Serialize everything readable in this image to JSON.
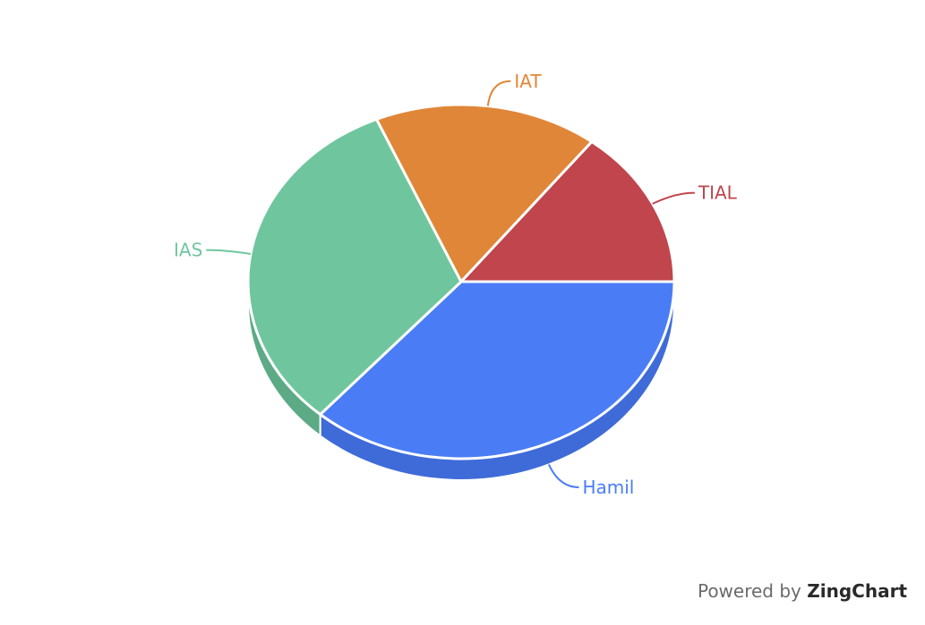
{
  "chart_data": {
    "type": "pie",
    "title": "",
    "slices": [
      {
        "label": "Hamil",
        "value": 36.5,
        "color": "#4a7df5",
        "side_color": "#3f6bd8"
      },
      {
        "label": "IAS",
        "value": 32.0,
        "color": "#6fc69e",
        "side_color": "#5daa86"
      },
      {
        "label": "IAT",
        "value": 17.0,
        "color": "#e08638",
        "side_color": "#c2722e"
      },
      {
        "label": "TIAL",
        "value": 14.5,
        "color": "#c0454c",
        "side_color": "#a33a40"
      }
    ],
    "style": "3d",
    "legend": "none",
    "labels": "callout"
  },
  "credit": {
    "prefix": "Powered by ",
    "brand": "ZingChart"
  }
}
